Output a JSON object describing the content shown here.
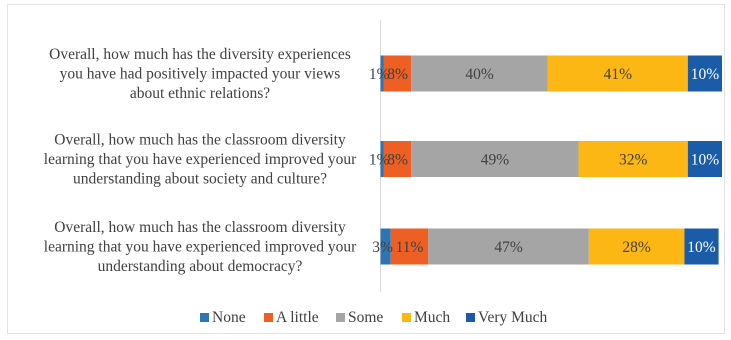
{
  "chart_data": {
    "type": "bar",
    "orientation": "horizontal",
    "stacked": true,
    "percent_stacked": true,
    "categories": [
      "Overall, how much has the diversity experiences you have had positively impacted your views about ethnic relations?",
      "Overall, how much has the classroom diversity learning that you have experienced improved your understanding about society and culture?",
      "Overall, how much has the classroom diversity learning that you have experienced improved your understanding about democracy?"
    ],
    "category_lines": [
      [
        "Overall, how much has the diversity experiences",
        "you have had positively impacted your views",
        "about ethnic relations?"
      ],
      [
        "Overall, how much has the classroom diversity",
        "learning that you have experienced improved your",
        "understanding about society and culture?"
      ],
      [
        "Overall, how much has the classroom diversity",
        "learning that you have experienced improved your",
        "understanding about democracy?"
      ]
    ],
    "series": [
      {
        "name": "None",
        "color": "#2e75b6",
        "values": [
          1,
          1,
          3
        ],
        "labels": [
          "1%",
          "1%",
          "3%"
        ]
      },
      {
        "name": "A little",
        "color": "#ed5f22",
        "values": [
          8,
          8,
          11
        ],
        "labels": [
          "8%",
          "8%",
          "11%"
        ]
      },
      {
        "name": "Some",
        "color": "#a5a5a5",
        "values": [
          40,
          49,
          47
        ],
        "labels": [
          "40%",
          "49%",
          "47%"
        ]
      },
      {
        "name": "Much",
        "color": "#fdb714",
        "values": [
          41,
          32,
          28
        ],
        "labels": [
          "41%",
          "32%",
          "28%"
        ]
      },
      {
        "name": "Very Much",
        "color": "#1a5ca8",
        "values": [
          10,
          10,
          10
        ],
        "labels": [
          "10%",
          "10%",
          "10%"
        ]
      }
    ],
    "xlim": [
      0,
      100
    ],
    "legend_position": "bottom",
    "grid": false,
    "label_color": "#404040",
    "inner_label_color": "#404040",
    "dark_label_color": "#ffffff"
  }
}
